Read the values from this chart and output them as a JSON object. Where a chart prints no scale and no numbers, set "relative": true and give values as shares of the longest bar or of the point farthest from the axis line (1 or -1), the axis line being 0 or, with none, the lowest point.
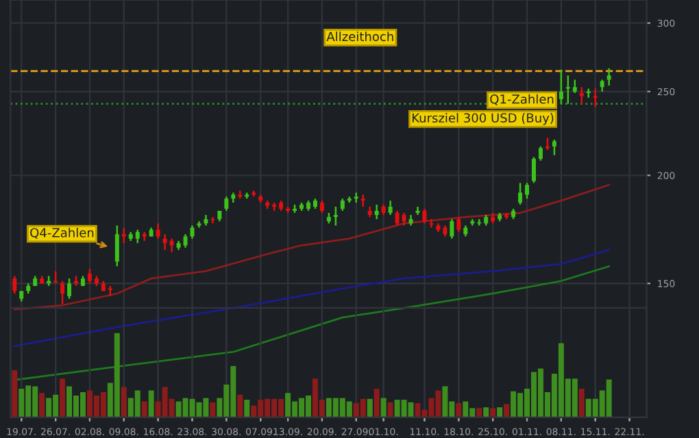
{
  "chart_data": [
    {
      "type": "candlestick",
      "categories": [
        null,
        "19.07.",
        null,
        null,
        null,
        null,
        "26.07.",
        null,
        null,
        null,
        null,
        "02.08.",
        null,
        null,
        null,
        null,
        "09.08.",
        null,
        null,
        null,
        null,
        "16.08.",
        null,
        null,
        null,
        null,
        "23.08.",
        null,
        null,
        null,
        null,
        "30.08.",
        null,
        null,
        null,
        null,
        "07.09.",
        null,
        null,
        null,
        "13.09.",
        null,
        null,
        null,
        null,
        "20.09.",
        null,
        null,
        null,
        null,
        "27.09.",
        null,
        null,
        null,
        "01.10.",
        null,
        null,
        null,
        null,
        null,
        "11.10.",
        null,
        null,
        null,
        null,
        "18.10.",
        null,
        null,
        null,
        null,
        "25.10.",
        null,
        null,
        null,
        null,
        "01.11.",
        null,
        null,
        null,
        null,
        "08.11.",
        null,
        null,
        null,
        null,
        "15.11.",
        null,
        null,
        null,
        null,
        "22.11."
      ],
      "ohlc": [
        [
          152,
          153,
          146,
          147
        ],
        [
          144,
          147,
          143,
          147
        ],
        [
          147,
          150,
          146,
          149
        ],
        [
          149,
          153,
          149,
          152
        ],
        [
          152,
          153,
          150,
          150
        ],
        [
          150,
          153,
          149,
          151
        ],
        [
          151,
          155,
          150,
          150.5
        ],
        [
          150,
          151,
          142,
          146
        ],
        [
          145,
          152,
          144,
          150
        ],
        [
          151,
          153,
          149,
          150
        ],
        [
          149,
          153,
          149,
          152
        ],
        [
          154,
          156,
          150,
          151
        ],
        [
          152,
          153,
          149,
          150
        ],
        [
          150,
          151,
          147,
          147
        ],
        [
          148,
          149,
          145,
          147.5
        ],
        [
          159,
          175,
          157,
          171
        ],
        [
          171,
          174,
          167,
          170
        ],
        [
          169,
          172,
          168,
          171
        ],
        [
          169,
          173,
          167,
          172
        ],
        [
          171,
          172,
          168,
          170
        ],
        [
          170,
          174,
          170,
          173
        ],
        [
          173,
          176,
          169,
          170
        ],
        [
          169,
          171,
          164,
          167
        ],
        [
          168,
          169,
          163,
          166
        ],
        [
          165,
          168,
          164,
          167
        ],
        [
          166,
          171,
          165,
          170
        ],
        [
          170,
          175,
          169,
          174
        ],
        [
          175,
          177,
          174,
          176
        ],
        [
          176,
          180,
          175,
          178
        ],
        [
          178,
          179,
          176,
          177.5
        ],
        [
          178,
          182,
          177,
          182
        ],
        [
          183,
          189,
          182,
          188
        ],
        [
          188,
          191,
          186,
          190
        ],
        [
          190,
          192,
          188,
          189
        ],
        [
          189,
          191,
          188,
          190
        ],
        [
          191,
          192,
          189,
          190
        ],
        [
          189,
          190,
          186,
          187
        ],
        [
          186,
          187,
          183,
          184.5
        ],
        [
          185,
          186,
          182,
          184
        ],
        [
          186,
          187,
          182,
          183
        ],
        [
          183,
          184,
          181,
          182
        ],
        [
          182,
          185,
          181,
          183
        ],
        [
          183,
          186,
          182,
          185
        ],
        [
          183,
          187,
          182,
          186
        ],
        [
          184,
          188,
          183,
          187
        ],
        [
          186,
          187,
          181,
          182
        ],
        [
          177,
          181,
          176,
          179
        ],
        [
          179,
          184,
          175,
          180
        ],
        [
          183,
          188,
          182,
          187
        ],
        [
          187,
          189,
          186,
          188
        ],
        [
          188,
          191,
          186,
          189
        ],
        [
          188,
          190,
          184,
          187
        ],
        [
          182,
          184,
          179,
          180
        ],
        [
          180,
          185,
          178,
          182
        ],
        [
          184,
          185,
          180,
          181
        ],
        [
          181,
          187,
          180,
          184
        ],
        [
          181,
          182,
          175,
          176
        ],
        [
          180,
          181,
          175,
          177
        ],
        [
          176,
          180,
          175,
          178
        ],
        [
          181,
          184,
          180,
          182
        ],
        [
          182,
          183,
          176,
          177
        ],
        [
          176,
          178,
          174,
          175.5
        ],
        [
          175,
          176,
          172,
          173
        ],
        [
          174,
          175,
          170,
          171
        ],
        [
          170,
          178,
          169,
          177
        ],
        [
          178,
          179,
          172,
          173
        ],
        [
          171,
          175,
          170,
          174
        ],
        [
          176,
          178,
          175,
          177
        ],
        [
          176,
          178,
          175,
          176.5
        ],
        [
          176,
          180,
          175,
          179
        ],
        [
          179,
          181,
          176,
          177
        ],
        [
          178,
          181,
          177,
          180
        ],
        [
          180,
          181,
          178,
          179
        ],
        [
          179,
          183,
          178,
          182
        ],
        [
          186,
          196,
          185,
          191
        ],
        [
          190,
          196,
          188,
          195
        ],
        [
          197,
          210,
          196,
          209
        ],
        [
          209,
          216,
          208,
          215
        ],
        [
          216,
          221,
          214,
          215
        ],
        [
          216,
          220,
          211,
          219
        ],
        [
          245,
          265,
          242,
          250
        ],
        [
          252,
          261,
          242,
          253
        ],
        [
          250,
          258,
          249,
          253
        ],
        [
          249,
          253,
          242,
          247
        ],
        [
          249,
          252,
          246,
          250
        ],
        [
          247,
          252,
          240,
          246
        ],
        [
          253,
          258,
          250,
          257
        ],
        [
          258,
          266,
          254,
          261
        ],
        null,
        null,
        null
      ],
      "colors": [
        "#e01010",
        "#3dc21b",
        "#3dc21b",
        "#3dc21b",
        "#e01010",
        "#3dc21b",
        "#e01010",
        "#e01010",
        "#3dc21b",
        "#e01010",
        "#3dc21b",
        "#e01010",
        "#e01010",
        "#e01010",
        "#e01010",
        "#3dc21b",
        "#e01010",
        "#3dc21b",
        "#3dc21b",
        "#e01010",
        "#3dc21b",
        "#e01010",
        "#e01010",
        "#e01010",
        "#3dc21b",
        "#3dc21b",
        "#3dc21b",
        "#3dc21b",
        "#3dc21b",
        "#e01010",
        "#3dc21b",
        "#3dc21b",
        "#3dc21b",
        "#e01010",
        "#3dc21b",
        "#e01010",
        "#e01010",
        "#e01010",
        "#e01010",
        "#e01010",
        "#e01010",
        "#3dc21b",
        "#3dc21b",
        "#3dc21b",
        "#3dc21b",
        "#e01010",
        "#3dc21b",
        "#3dc21b",
        "#3dc21b",
        "#3dc21b",
        "#3dc21b",
        "#e01010",
        "#e01010",
        "#3dc21b",
        "#e01010",
        "#3dc21b",
        "#e01010",
        "#e01010",
        "#3dc21b",
        "#3dc21b",
        "#e01010",
        "#e01010",
        "#e01010",
        "#e01010",
        "#3dc21b",
        "#e01010",
        "#3dc21b",
        "#3dc21b",
        "#3dc21b",
        "#3dc21b",
        "#e01010",
        "#3dc21b",
        "#e01010",
        "#3dc21b",
        "#3dc21b",
        "#3dc21b",
        "#3dc21b",
        "#3dc21b",
        "#e01010",
        "#3dc21b",
        "#3dc21b",
        "#3dc21b",
        "#3dc21b",
        "#e01010",
        "#3dc21b",
        "#e01010",
        "#3dc21b",
        "#3dc21b",
        null,
        null,
        null
      ],
      "series": [
        {
          "type": "line",
          "color": "#8b1e1e",
          "values": [
            140,
            null,
            null,
            null,
            null,
            null,
            null,
            141.5,
            null,
            null,
            null,
            null,
            null,
            null,
            null,
            146,
            null,
            null,
            null,
            null,
            152,
            null,
            null,
            null,
            null,
            null,
            null,
            null,
            155,
            null,
            null,
            null,
            null,
            null,
            null,
            null,
            null,
            null,
            163,
            null,
            null,
            null,
            166,
            null,
            null,
            null,
            null,
            null,
            null,
            169,
            null,
            null,
            null,
            null,
            null,
            null,
            null,
            176,
            null,
            null,
            null,
            null,
            null,
            null,
            null,
            null,
            179,
            null,
            null,
            null,
            null,
            null,
            null,
            null,
            181,
            null,
            null,
            null,
            null,
            null,
            187,
            null,
            null,
            null,
            null,
            null,
            null,
            195,
            null,
            null,
            null
          ]
        },
        {
          "type": "line",
          "color": "#1c1c8e",
          "values": [
            127,
            null,
            null,
            null,
            null,
            null,
            null,
            null,
            null,
            null,
            null,
            null,
            null,
            null,
            null,
            null,
            134,
            null,
            null,
            null,
            null,
            null,
            null,
            null,
            null,
            null,
            null,
            null,
            null,
            null,
            null,
            null,
            140.5,
            null,
            null,
            null,
            null,
            null,
            null,
            null,
            null,
            null,
            null,
            null,
            null,
            null,
            null,
            null,
            148,
            null,
            null,
            null,
            null,
            null,
            null,
            null,
            null,
            152,
            null,
            null,
            null,
            null,
            null,
            null,
            null,
            null,
            null,
            null,
            null,
            null,
            155,
            null,
            null,
            null,
            null,
            null,
            null,
            null,
            null,
            null,
            158,
            null,
            null,
            null,
            null,
            null,
            null,
            164,
            null,
            null,
            null
          ]
        },
        {
          "type": "line",
          "color": "#1e7a1e",
          "values": [
            116,
            null,
            null,
            null,
            null,
            null,
            null,
            null,
            null,
            null,
            null,
            null,
            null,
            null,
            null,
            null,
            120.5,
            null,
            null,
            null,
            null,
            null,
            null,
            null,
            null,
            null,
            null,
            null,
            null,
            null,
            null,
            null,
            125,
            null,
            null,
            null,
            null,
            null,
            null,
            null,
            null,
            null,
            null,
            null,
            null,
            null,
            null,
            null,
            137,
            null,
            null,
            null,
            null,
            null,
            null,
            null,
            null,
            140.5,
            null,
            null,
            null,
            null,
            null,
            null,
            null,
            null,
            null,
            null,
            null,
            null,
            146,
            null,
            null,
            null,
            null,
            null,
            null,
            null,
            null,
            null,
            151,
            null,
            null,
            null,
            null,
            null,
            null,
            157,
            null,
            null,
            null
          ]
        }
      ],
      "log": true,
      "ylim": [
        105,
        319
      ],
      "yticks": [
        150,
        200,
        250,
        300
      ],
      "grid": true,
      "tick_labels": "y",
      "ref_lines": [
        {
          "axis": "y",
          "value": 264,
          "label": "Allzeithoch",
          "color": "#e8a317",
          "line_style": "dashed"
        },
        {
          "axis": "y",
          "value": 242,
          "color": "#2e8b2e",
          "line_style": "dotted"
        }
      ],
      "annotations": [
        "Q4-Zahlen",
        "Q1-Zahlen",
        "Kursziel 300 USD (Buy)"
      ]
    },
    {
      "type": "bar",
      "relative": true,
      "grid": "x",
      "tick_labels": "x",
      "categories": [
        null,
        "19.07.",
        null,
        null,
        null,
        null,
        "26.07.",
        null,
        null,
        null,
        null,
        "02.08.",
        null,
        null,
        null,
        null,
        "09.08.",
        null,
        null,
        null,
        null,
        "16.08.",
        null,
        null,
        null,
        null,
        "23.08.",
        null,
        null,
        null,
        null,
        "30.08.",
        null,
        null,
        null,
        null,
        "07.09.",
        null,
        null,
        null,
        "13.09.",
        null,
        null,
        null,
        null,
        "20.09.",
        null,
        null,
        null,
        null,
        "27.09.",
        null,
        null,
        null,
        "01.10.",
        null,
        null,
        null,
        null,
        null,
        "11.10.",
        null,
        null,
        null,
        null,
        "18.10.",
        null,
        null,
        null,
        null,
        "25.10.",
        null,
        null,
        null,
        null,
        "01.11.",
        null,
        null,
        null,
        null,
        "08.11.",
        null,
        null,
        null,
        null,
        "15.11.",
        null,
        null,
        null,
        null,
        "22.11."
      ],
      "values": [
        0.56,
        0.34,
        0.38,
        0.37,
        0.29,
        0.23,
        0.27,
        0.46,
        0.37,
        0.26,
        0.3,
        0.32,
        0.26,
        0.3,
        0.41,
        1,
        0.36,
        0.23,
        0.32,
        0.19,
        0.32,
        0.19,
        0.36,
        0.22,
        0.19,
        0.23,
        0.22,
        0.18,
        0.23,
        0.18,
        0.23,
        0.39,
        0.61,
        0.27,
        0.21,
        0.14,
        0.21,
        0.22,
        0.22,
        0.22,
        0.29,
        0.19,
        0.23,
        0.26,
        0.46,
        0.21,
        0.23,
        0.23,
        0.23,
        0.19,
        0.17,
        0.22,
        0.22,
        0.34,
        0.23,
        0.18,
        0.21,
        0.21,
        0.18,
        0.17,
        0.09,
        0.23,
        0.32,
        0.37,
        0.19,
        0.17,
        0.19,
        0.11,
        0.11,
        0.12,
        0.11,
        0.12,
        0.16,
        0.31,
        0.29,
        0.34,
        0.54,
        0.58,
        0.3,
        0.52,
        0.88,
        0.46,
        0.46,
        0.34,
        0.22,
        0.22,
        0.32,
        0.45,
        null,
        null,
        null
      ],
      "colors": [
        "#8c1c1c",
        "#3e8e1f",
        "#3e8e1f",
        "#3e8e1f",
        "#8c1c1c",
        "#3e8e1f",
        "#3e8e1f",
        "#8c1c1c",
        "#3e8e1f",
        "#3e8e1f",
        "#3e8e1f",
        "#8c1c1c",
        "#8c1c1c",
        "#8c1c1c",
        "#3e8e1f",
        "#3e8e1f",
        "#8c1c1c",
        "#3e8e1f",
        "#3e8e1f",
        "#8c1c1c",
        "#3e8e1f",
        "#8c1c1c",
        "#8c1c1c",
        "#8c1c1c",
        "#3e8e1f",
        "#3e8e1f",
        "#3e8e1f",
        "#3e8e1f",
        "#3e8e1f",
        "#8c1c1c",
        "#3e8e1f",
        "#3e8e1f",
        "#3e8e1f",
        "#8c1c1c",
        "#3e8e1f",
        "#8c1c1c",
        "#8c1c1c",
        "#8c1c1c",
        "#8c1c1c",
        "#8c1c1c",
        "#3e8e1f",
        "#3e8e1f",
        "#3e8e1f",
        "#3e8e1f",
        "#8c1c1c",
        "#8c1c1c",
        "#3e8e1f",
        "#3e8e1f",
        "#3e8e1f",
        "#3e8e1f",
        "#8c1c1c",
        "#8c1c1c",
        "#3e8e1f",
        "#8c1c1c",
        "#3e8e1f",
        "#8c1c1c",
        "#3e8e1f",
        "#3e8e1f",
        "#3e8e1f",
        "#8c1c1c",
        "#8c1c1c",
        "#8c1c1c",
        "#8c1c1c",
        "#3e8e1f",
        "#3e8e1f",
        "#8c1c1c",
        "#3e8e1f",
        "#3e8e1f",
        "#8c1c1c",
        "#3e8e1f",
        "#8c1c1c",
        "#3e8e1f",
        "#8c1c1c",
        "#3e8e1f",
        "#3e8e1f",
        "#3e8e1f",
        "#3e8e1f",
        "#3e8e1f",
        "#3e8e1f",
        "#3e8e1f",
        "#3e8e1f",
        "#3e8e1f",
        "#3e8e1f",
        "#8c1c1c",
        "#3e8e1f",
        "#3e8e1f",
        "#3e8e1f",
        "#3e8e1f",
        null,
        null,
        null
      ]
    }
  ]
}
